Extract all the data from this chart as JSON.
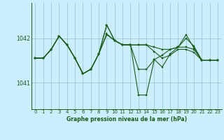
{
  "title": "Graphe pression niveau de la mer (hPa)",
  "background_color": "#cceeff",
  "grid_color": "#99cccc",
  "line_color": "#1a5c1a",
  "xlim": [
    -0.5,
    23.5
  ],
  "ylim": [
    1040.4,
    1042.8
  ],
  "yticks": [
    1041,
    1042
  ],
  "xticks": [
    0,
    1,
    2,
    3,
    4,
    5,
    6,
    7,
    8,
    9,
    10,
    11,
    12,
    13,
    14,
    15,
    16,
    17,
    18,
    19,
    20,
    21,
    22,
    23
  ],
  "series": [
    [
      1041.55,
      1041.55,
      1041.75,
      1042.05,
      1041.85,
      1041.55,
      1041.2,
      1041.3,
      1041.65,
      1042.3,
      1041.95,
      1041.85,
      1041.85,
      1041.85,
      1041.85,
      1041.8,
      1041.75,
      1041.75,
      1041.8,
      1041.8,
      1041.75,
      1041.5,
      1041.5,
      1041.5
    ],
    [
      1041.55,
      1041.55,
      1041.75,
      1042.05,
      1041.85,
      1041.55,
      1041.2,
      1041.3,
      1041.65,
      1042.1,
      1041.95,
      1041.85,
      1041.85,
      1041.3,
      1041.3,
      1041.52,
      1041.62,
      1041.75,
      1041.8,
      1042.0,
      1041.82,
      1041.5,
      1041.5,
      1041.5
    ],
    [
      1041.55,
      1041.55,
      1041.75,
      1042.05,
      1041.85,
      1041.55,
      1041.2,
      1041.3,
      1041.65,
      1042.3,
      1041.95,
      1041.85,
      1041.85,
      1040.72,
      1040.72,
      1041.52,
      1041.35,
      1041.65,
      1041.8,
      1042.08,
      1041.78,
      1041.5,
      1041.5,
      1041.5
    ],
    [
      1041.55,
      1041.55,
      1041.75,
      1042.05,
      1041.85,
      1041.55,
      1041.2,
      1041.3,
      1041.65,
      1042.08,
      1041.95,
      1041.85,
      1041.85,
      1041.85,
      1041.85,
      1041.7,
      1041.55,
      1041.62,
      1041.75,
      1041.75,
      1041.68,
      1041.5,
      1041.5,
      1041.5
    ]
  ]
}
